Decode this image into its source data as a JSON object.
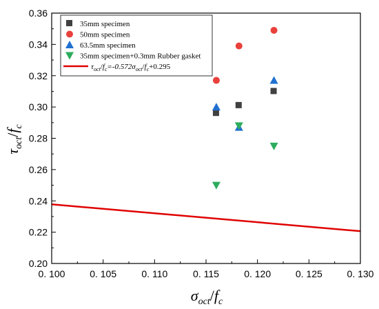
{
  "chart_data": {
    "type": "scatter",
    "xlabel": {
      "main": "σ",
      "sub": "oct",
      "slash": "/",
      "f": "f",
      "fsub": "c"
    },
    "ylabel": {
      "main": "τ",
      "sub": "oct",
      "slash": "/",
      "f": "f",
      "fsub": "c"
    },
    "xlim": [
      0.1,
      0.13
    ],
    "ylim": [
      0.2,
      0.36
    ],
    "xticks": [
      0.1,
      0.105,
      0.11,
      0.115,
      0.12,
      0.125,
      0.13
    ],
    "xtick_labels": [
      "0. 100",
      "0. 105",
      "0. 110",
      "0. 115",
      "0. 120",
      "0. 125",
      "0. 130"
    ],
    "yticks": [
      0.2,
      0.22,
      0.24,
      0.26,
      0.28,
      0.3,
      0.32,
      0.34,
      0.36
    ],
    "ytick_labels": [
      "0.20",
      "0.22",
      "0.24",
      "0.26",
      "0.28",
      "0.30",
      "0.32",
      "0.34",
      "0.36"
    ],
    "legend_position": "top-left",
    "series": [
      {
        "name": "35mm specimen",
        "marker": "square",
        "color": "#404040",
        "x": [
          0.116,
          0.1182,
          0.1216
        ],
        "y": [
          0.296,
          0.301,
          0.31
        ]
      },
      {
        "name": "50mm specimen",
        "marker": "circle",
        "color": "#e8413c",
        "x": [
          0.116,
          0.1182,
          0.1216
        ],
        "y": [
          0.317,
          0.339,
          0.349
        ]
      },
      {
        "name": "63.5mm specimen",
        "marker": "triangle-up",
        "color": "#2070d0",
        "x": [
          0.116,
          0.1182,
          0.1216
        ],
        "y": [
          0.3,
          0.287,
          0.317
        ]
      },
      {
        "name": "35mm specimen+0.3mm Rubber gasket",
        "marker": "triangle-down",
        "color": "#2eac5e",
        "x": [
          0.116,
          0.1182,
          0.1216
        ],
        "y": [
          0.25,
          0.288,
          0.275
        ]
      }
    ],
    "line": {
      "color": "#e00000",
      "slope": -0.572,
      "intercept": 0.295,
      "label": {
        "lhs_main": "τ",
        "lhs_sub": "oct",
        "f1": "f",
        "f1sub": "c",
        "eq": "=-0.572",
        "sigma": "σ",
        "sigma_sub": "oct",
        "f2": "f",
        "f2sub": "c",
        "tail": "+0.295"
      }
    }
  }
}
